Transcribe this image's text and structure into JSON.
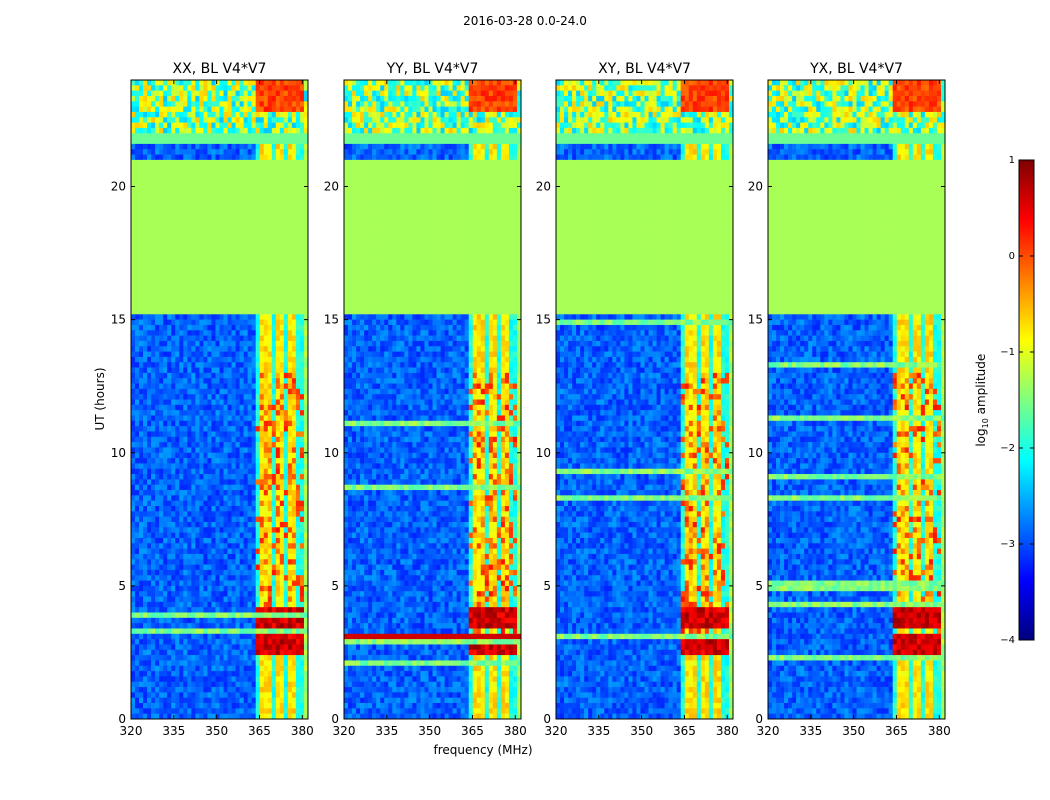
{
  "chart_data": {
    "type": "heatmap",
    "suptitle": "2016-03-28 0.0-24.0",
    "xlabel": "frequency (MHz)",
    "ylabel": "UT (hours)",
    "colorbar_label": "log10 amplitude",
    "colorbar_label_base": "log",
    "colorbar_label_sub": "10",
    "colorbar_label_rest": "amplitude",
    "colorbar_range": [
      -4,
      1
    ],
    "colorbar_ticks": [
      {
        "v": 1,
        "label": "1"
      },
      {
        "v": 0,
        "label": "0"
      },
      {
        "v": -1,
        "label": "−1"
      },
      {
        "v": -2,
        "label": "−2"
      },
      {
        "v": -3,
        "label": "−3"
      },
      {
        "v": -4,
        "label": "−4"
      }
    ],
    "colormap": "jet",
    "xlim": [
      320,
      382
    ],
    "ylim": [
      0,
      24
    ],
    "x_ticks": [
      320,
      335,
      350,
      365,
      380
    ],
    "y_ticks": [
      0,
      5,
      10,
      15,
      20
    ],
    "panels": [
      {
        "title": "XX, BL V4*V7"
      },
      {
        "title": "YY, BL V4*V7"
      },
      {
        "title": "XY, BL V4*V7"
      },
      {
        "title": "YX, BL V4*V7"
      }
    ],
    "masked_time_ranges": [
      [
        15.2,
        21.0
      ]
    ],
    "masked_value": -1.3,
    "background_level": -2.9,
    "bright_rfi_band_mhz": [
      364,
      380
    ],
    "strong_rfi_time_ranges": [
      [
        2.4,
        3.2
      ],
      [
        3.5,
        4.2
      ]
    ],
    "blank_time_gaps": [
      [
        21.7,
        22.0
      ]
    ],
    "colors": {
      "jet": [
        "#00007f",
        "#0000ff",
        "#007fff",
        "#00ffff",
        "#7fff7f",
        "#ffff00",
        "#ff7f00",
        "#ff0000",
        "#7f0000"
      ]
    }
  }
}
